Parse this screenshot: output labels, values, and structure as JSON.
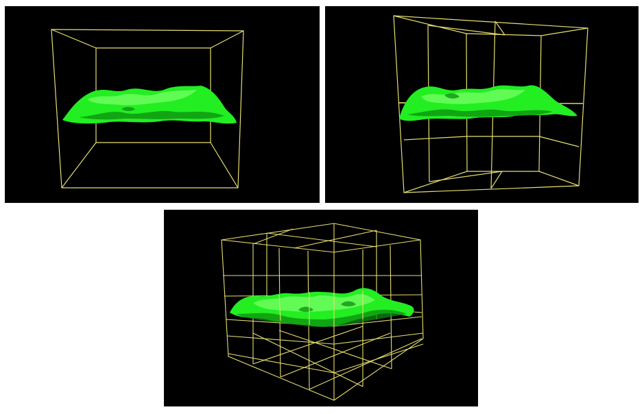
{
  "figure": {
    "panels": [
      {
        "id": "a",
        "bounding_box_subdivisions": 1
      },
      {
        "id": "b",
        "bounding_box_subdivisions": 2
      },
      {
        "id": "c",
        "bounding_box_subdivisions": 3
      }
    ]
  },
  "colors": {
    "background": "#000000",
    "wireframe": "#e8e070",
    "surface": "#22ee22",
    "surface_highlight": "#7dff6a",
    "surface_shadow": "#0c8c10"
  }
}
